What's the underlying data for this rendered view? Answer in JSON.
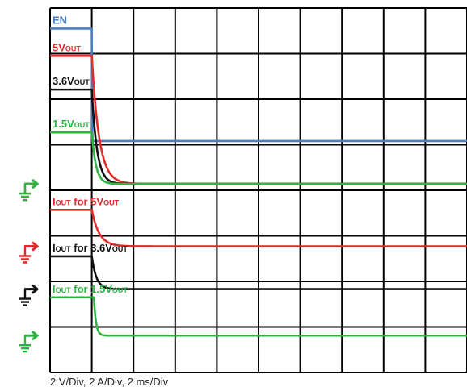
{
  "chart_data": {
    "type": "line",
    "caption": "2 V/Div, 2 A/Div, 2 ms/Div",
    "grid": true,
    "x_range_ms": [
      0,
      20
    ],
    "x_divisions": 10,
    "y_divisions": 8,
    "event_time_ms": 2,
    "series": [
      {
        "name": "EN",
        "label_main": "EN",
        "label_sub": "",
        "color": "#4a7cc0",
        "before_div": 7.55,
        "after_div": 5.08,
        "tau_ms": 0.01,
        "offset_ms": 0.0,
        "ground_marker": false
      },
      {
        "name": "5VOUT",
        "label_main": "5V",
        "label_sub": "OUT",
        "color": "#e02b2b",
        "before_div": 6.95,
        "after_div": 4.14,
        "tau_ms": 0.35,
        "offset_ms": 0.0,
        "ground_marker": true
      },
      {
        "name": "3.6VOUT",
        "label_main": "3.6V",
        "label_sub": "OUT",
        "color": "#111111",
        "before_div": 6.21,
        "after_div": 4.14,
        "tau_ms": 0.25,
        "offset_ms": 0.0,
        "ground_marker": false
      },
      {
        "name": "1.5VOUT",
        "label_main": "1.5V",
        "label_sub": "OUT",
        "color": "#2db342",
        "before_div": 5.27,
        "after_div": 4.14,
        "tau_ms": 0.2,
        "offset_ms": 0.0,
        "ground_marker": true
      },
      {
        "name": "IOUT for 5VOUT",
        "label_main": "I",
        "label_sub": "OUT",
        "label_rest": " for 5V",
        "label_sub2": "OUT",
        "color": "#e02b2b",
        "before_div": 3.57,
        "after_div": 2.77,
        "tau_ms": 0.35,
        "offset_ms": 0.0,
        "ground_marker": true
      },
      {
        "name": "IOUT for 3.6VOUT",
        "label_main": "I",
        "label_sub": "OUT",
        "label_rest": " for 3.6V",
        "label_sub2": "OUT",
        "color": "#111111",
        "before_div": 2.55,
        "after_div": 1.83,
        "tau_ms": 0.22,
        "offset_ms": 0.0,
        "ground_marker": true
      },
      {
        "name": "IOUT for 1.5VOUT",
        "label_main": "I",
        "label_sub": "OUT",
        "label_rest": " for 1.5V",
        "label_sub2": "OUT",
        "color": "#2db342",
        "before_div": 1.65,
        "after_div": 0.81,
        "tau_ms": 0.1,
        "offset_ms": 0.1,
        "ground_marker": true
      }
    ]
  }
}
